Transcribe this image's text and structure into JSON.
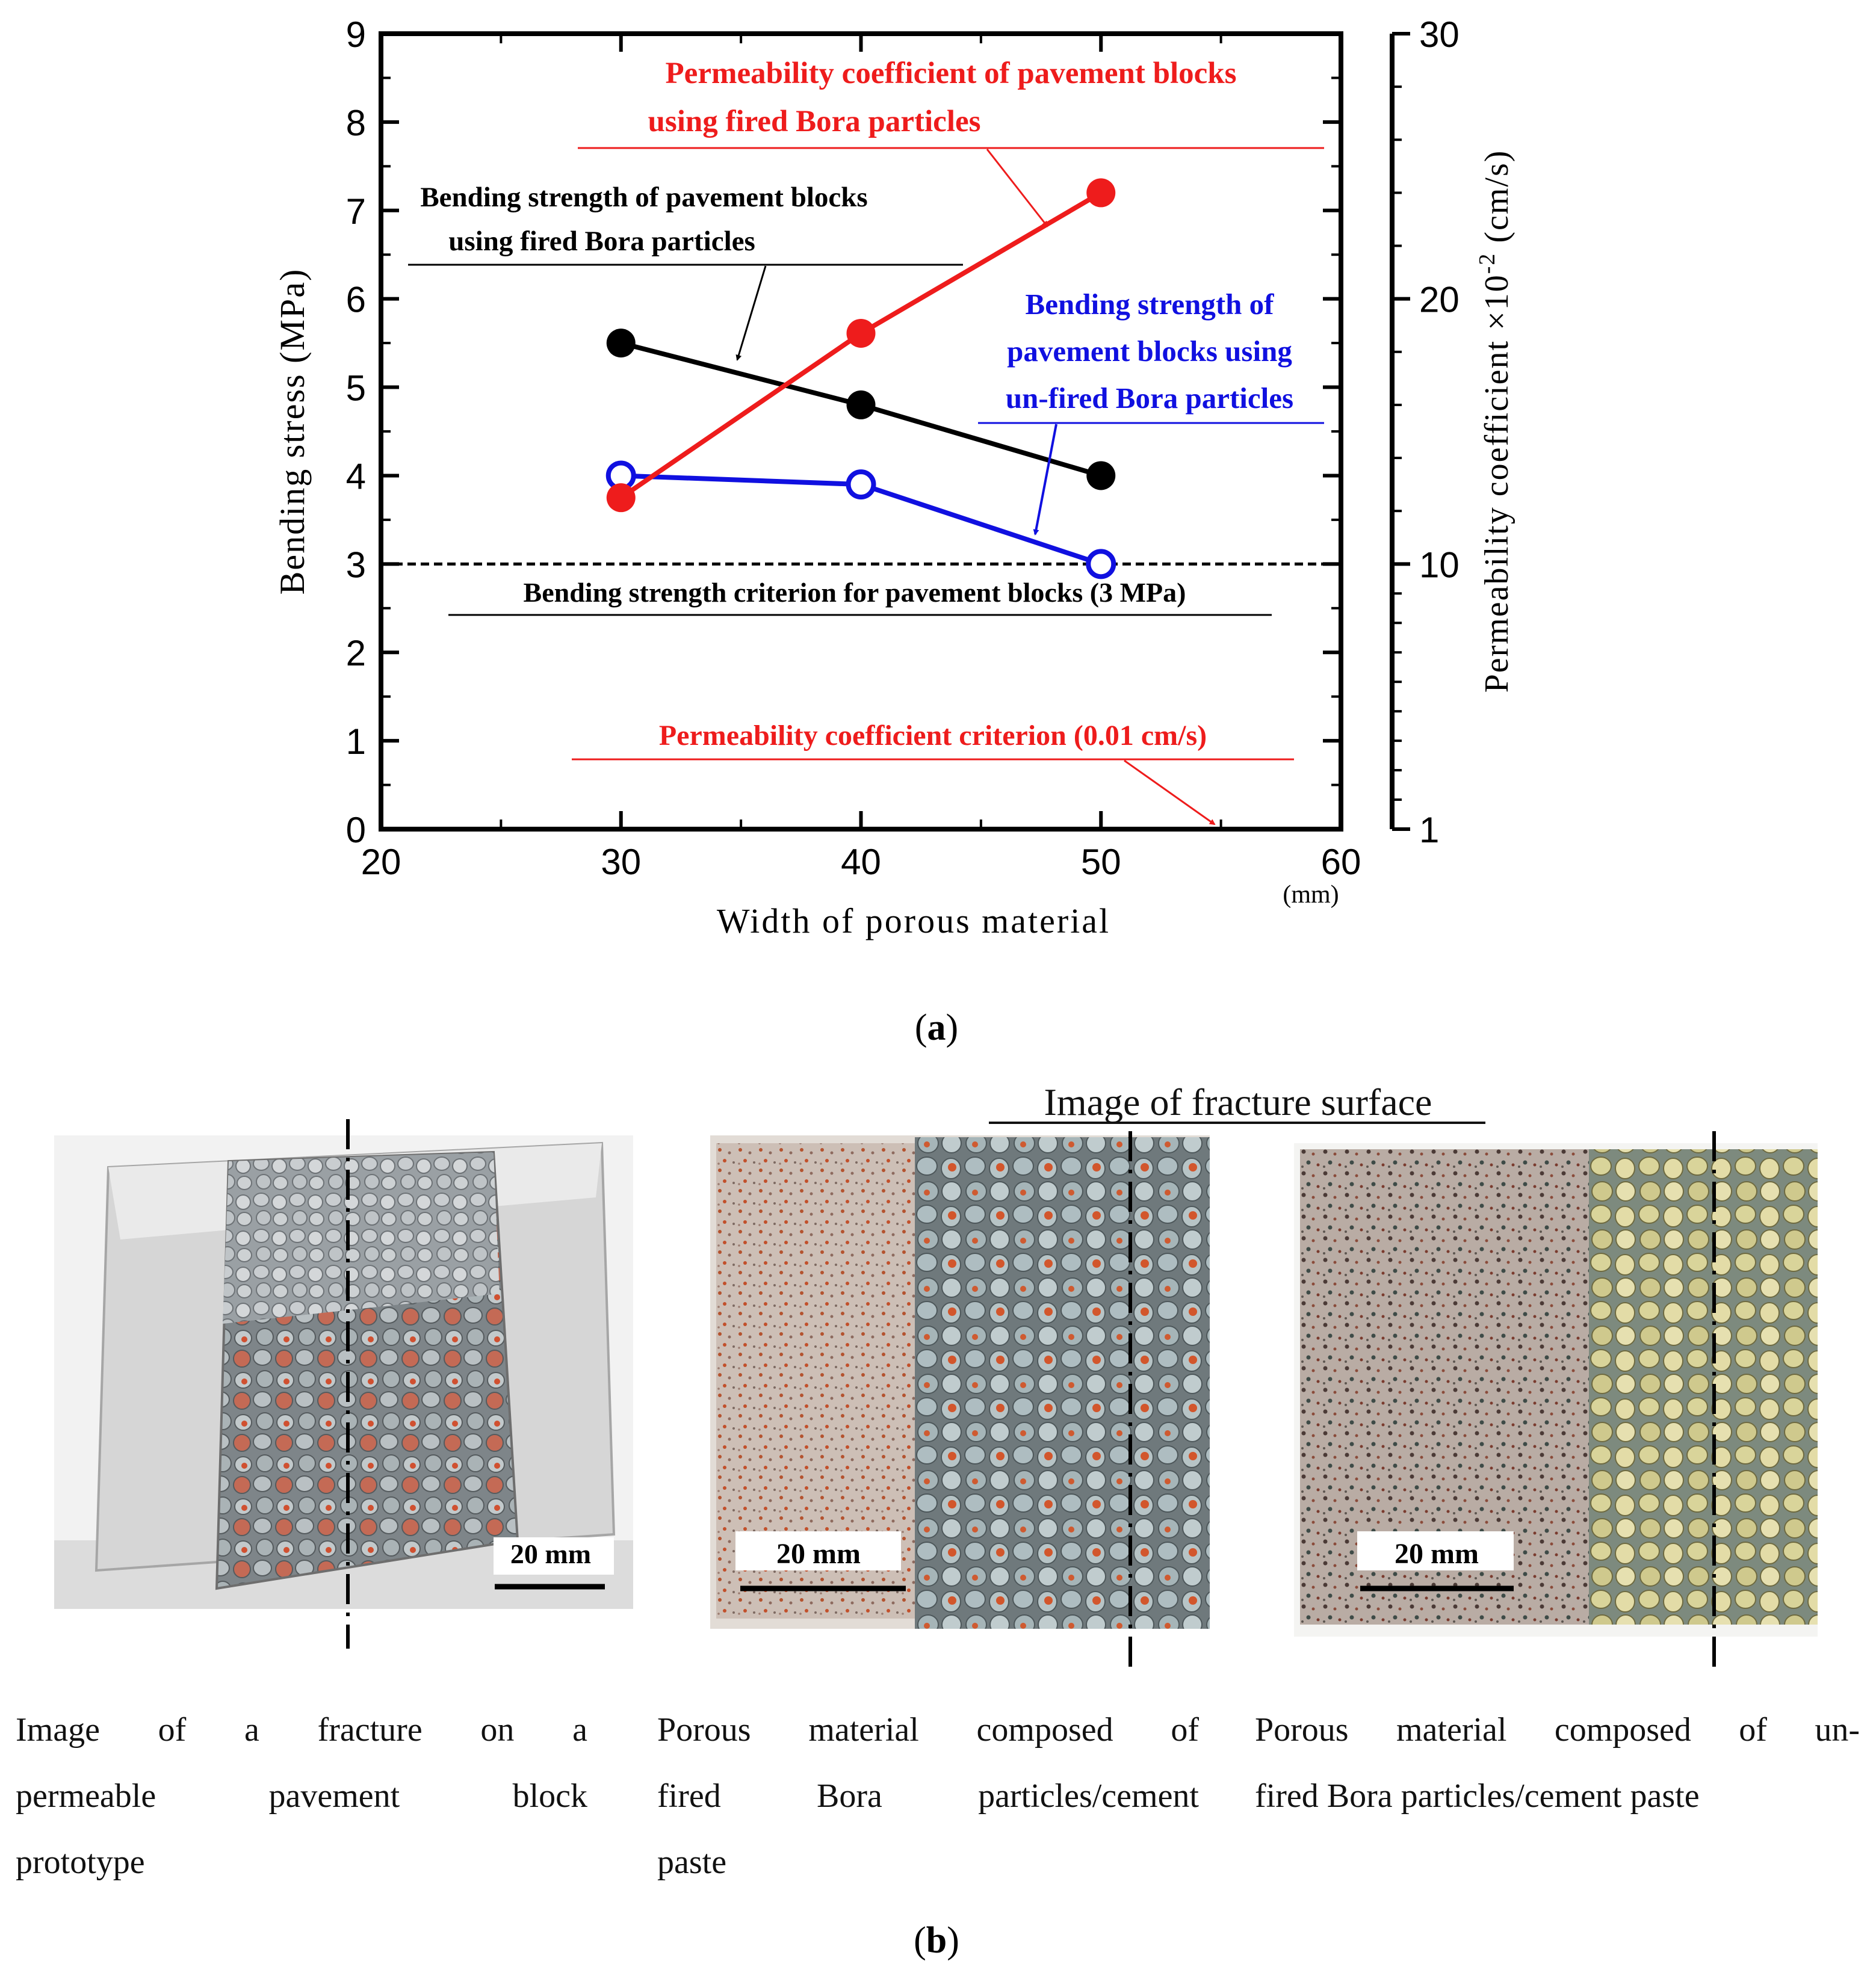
{
  "colors": {
    "red_series": "#ee1c1c",
    "black_series": "#000000",
    "blue_series": "#1010e0",
    "axis": "#000000"
  },
  "chart_data": {
    "type": "line",
    "x_axis": {
      "label": "Width of porous material",
      "unit": "(mm)",
      "range": [
        20,
        60
      ],
      "ticks": [
        20,
        30,
        40,
        50,
        60
      ]
    },
    "y_axis_left": {
      "label": "Bending stress (MPa)",
      "range": [
        0,
        9
      ],
      "ticks": [
        0,
        1,
        2,
        3,
        4,
        5,
        6,
        7,
        8,
        9
      ]
    },
    "y_axis_right": {
      "label_main": "Permeability coefficient ×10",
      "label_exp": "-2",
      "label_unit": " (cm/s)",
      "scale": "log",
      "range": [
        1,
        30
      ],
      "ticks": [
        1,
        10,
        20,
        30
      ]
    },
    "series": [
      {
        "name": "Bending strength of pavement blocks using fired Bora particles",
        "label_lines": [
          "Bending strength of pavement blocks",
          "using fired Bora particles"
        ],
        "axis": "left",
        "marker": "filled",
        "color": "#000000",
        "x": [
          30,
          40,
          50
        ],
        "y": [
          5.5,
          4.8,
          4.0
        ]
      },
      {
        "name": "Bending strength of pavement blocks using un-fired Bora particles",
        "label_lines": [
          "Bending strength of",
          "pavement blocks using",
          "un-fired Bora particles"
        ],
        "axis": "left",
        "marker": "open",
        "color": "#1010e0",
        "x": [
          30,
          40,
          50
        ],
        "y": [
          4.0,
          3.9,
          3.0
        ]
      },
      {
        "name": "Permeability coefficient of pavement blocks using fired Bora particles",
        "label_lines": [
          "Permeability coefficient of pavement blocks",
          "using fired Bora particles"
        ],
        "axis": "right",
        "marker": "filled",
        "color": "#ee1c1c",
        "x": [
          30,
          40,
          50
        ],
        "y": [
          12.5,
          18.7,
          24.0
        ]
      }
    ],
    "reference_lines": [
      {
        "label": "Bending strength criterion for pavement blocks (3 MPa)",
        "axis": "left",
        "value": 3,
        "style": "dashed"
      },
      {
        "label": "Permeability coefficient criterion (0.01 cm/s)",
        "axis": "right",
        "value": 1
      }
    ],
    "grid": false
  },
  "panel_a_label": {
    "open": "(",
    "letter": "a",
    "close": ")"
  },
  "panel_b_label": {
    "open": "(",
    "letter": "b",
    "close": ")"
  },
  "fracture_header": "Image of fracture surface",
  "photos": [
    {
      "scale_label": "20 mm",
      "caption_lines": [
        "Image of a fracture on a",
        "permeable pavement block",
        "prototype"
      ]
    },
    {
      "scale_label": "20 mm",
      "caption_lines": [
        "Porous material composed of",
        "fired Bora particles/cement",
        "paste"
      ]
    },
    {
      "scale_label": "20 mm",
      "caption_lines": [
        "Porous material composed of un-",
        "fired Bora particles/cement paste"
      ]
    }
  ]
}
